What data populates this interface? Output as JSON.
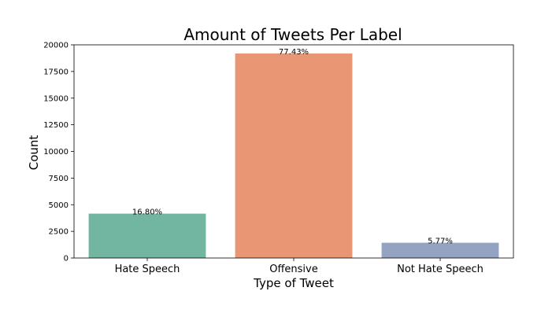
{
  "chart_data": {
    "type": "bar",
    "title": "Amount of Tweets Per Label",
    "xlabel": "Type of Tweet",
    "ylabel": "Count",
    "categories": [
      "Hate Speech",
      "Offensive",
      "Not Hate Speech"
    ],
    "values": [
      4163,
      19190,
      1430
    ],
    "data_labels": [
      "16.80%",
      "77.43%",
      "5.77%"
    ],
    "colors": [
      "#72b6a1",
      "#e99675",
      "#95a3c3"
    ],
    "ylim": [
      0,
      20000
    ],
    "yticks": [
      0,
      2500,
      5000,
      7500,
      10000,
      12500,
      15000,
      17500,
      20000
    ],
    "grid": false,
    "legend": "none"
  }
}
